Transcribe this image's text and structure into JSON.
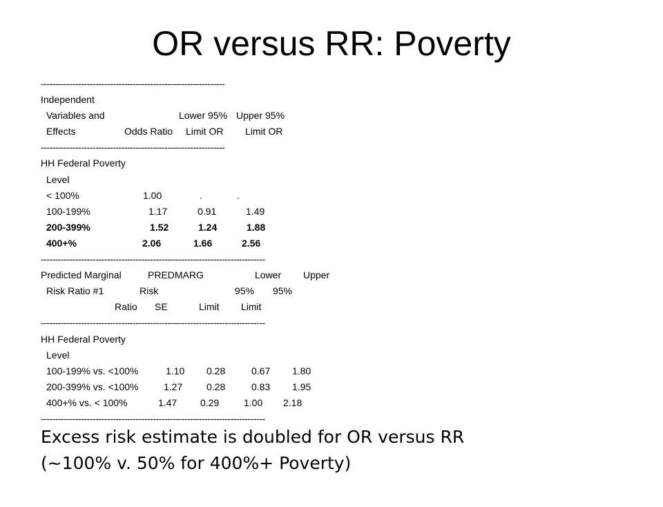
{
  "title": "OR versus RR: Poverty",
  "separators": {
    "short": "----------------------------------------------------------------",
    "long": "------------------------------------------------------------------------------"
  },
  "or_table": {
    "header": {
      "row1": "Independent",
      "row2": [
        "Variables and",
        "Lower 95%",
        "Upper 95%"
      ],
      "row3": [
        "Effects",
        "Odds Ratio",
        "Limit OR",
        "Limit OR"
      ]
    },
    "group_label": "HH Federal Poverty",
    "group_sub": "Level",
    "rows": [
      {
        "label": "< 100%",
        "or": "1.00",
        "lower": ".",
        "upper": "."
      },
      {
        "label": "100-199%",
        "or": "1.17",
        "lower": "0.91",
        "upper": "1.49"
      },
      {
        "label": "200-399%",
        "or": "1.52",
        "lower": "1.24",
        "upper": "1.88"
      },
      {
        "label": "400+%",
        "or": "2.06",
        "lower": "1.66",
        "upper": "2.56"
      }
    ]
  },
  "rr_table": {
    "header": {
      "row1": [
        "Predicted Marginal",
        "PREDMARG",
        "Lower",
        "Upper"
      ],
      "row2": [
        "Risk Ratio #1",
        "Risk",
        "95%",
        "95%"
      ],
      "row3": [
        "Ratio",
        "SE",
        "Limit",
        "Limit"
      ]
    },
    "group_label": "HH Federal Poverty",
    "group_sub": "Level",
    "rows": [
      {
        "label": "100-199% vs. <100%",
        "rr": "1.10",
        "se": "0.28",
        "lower": "0.67",
        "upper": "1.80"
      },
      {
        "label": "200-399% vs. <100%",
        "rr": "1.27",
        "se": "0.28",
        "lower": "0.83",
        "upper": "1.95"
      },
      {
        "label": "400+% vs. < 100%",
        "rr": "1.47",
        "se": "0.29",
        "lower": "1.00",
        "upper": "2.18"
      }
    ]
  },
  "conclusion": {
    "line1": "Excess risk estimate is doubled for OR versus RR",
    "line2": "(~100% v. 50% for 400%+ Poverty)"
  }
}
